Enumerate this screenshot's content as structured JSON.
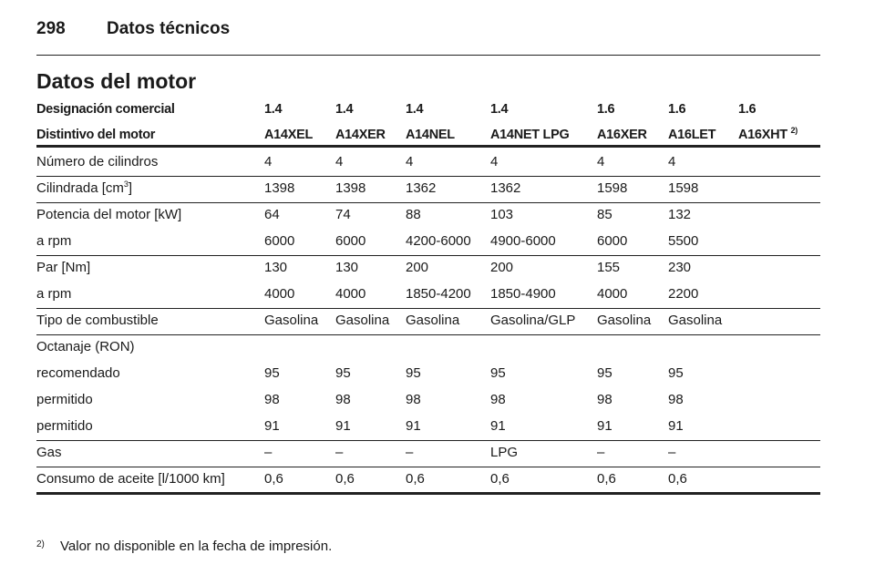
{
  "header": {
    "page": "298",
    "section": "Datos técnicos"
  },
  "title": "Datos del motor",
  "table": {
    "header_rows": [
      [
        "Designación comercial",
        "1.4",
        "1.4",
        "1.4",
        "1.4",
        "1.6",
        "1.6",
        "1.6"
      ],
      [
        "Distintivo del motor",
        "A14XEL",
        "A14XER",
        "A14NEL",
        "A14NET LPG",
        "A16XER",
        "A16LET",
        {
          "text": "A16XHT ",
          "sup": "2)"
        }
      ]
    ],
    "groups": [
      [
        [
          "Número de cilindros",
          "4",
          "4",
          "4",
          "4",
          "4",
          "4"
        ]
      ],
      [
        [
          {
            "text": "Cilindrada [cm",
            "sup": "3",
            "after": "]"
          },
          "1398",
          "1398",
          "1362",
          "1362",
          "1598",
          "1598"
        ]
      ],
      [
        [
          "Potencia del motor [kW]",
          "64",
          "74",
          "88",
          "103",
          "85",
          "132"
        ],
        [
          "a rpm",
          "6000",
          "6000",
          "4200-6000",
          "4900-6000",
          "6000",
          "5500"
        ]
      ],
      [
        [
          "Par [Nm]",
          "130",
          "130",
          "200",
          "200",
          "155",
          "230"
        ],
        [
          "a rpm",
          "4000",
          "4000",
          "1850-4200",
          "1850-4900",
          "4000",
          "2200"
        ]
      ],
      [
        [
          "Tipo de combustible",
          "Gasolina",
          "Gasolina",
          "Gasolina",
          "Gasolina/GLP",
          "Gasolina",
          "Gasolina"
        ]
      ],
      [
        [
          "Octanaje (RON)"
        ],
        [
          "recomendado",
          "95",
          "95",
          "95",
          "95",
          "95",
          "95"
        ],
        [
          "permitido",
          "98",
          "98",
          "98",
          "98",
          "98",
          "98"
        ],
        [
          "permitido",
          "91",
          "91",
          "91",
          "91",
          "91",
          "91"
        ]
      ],
      [
        [
          "Gas",
          "–",
          "–",
          "–",
          "LPG",
          "–",
          "–"
        ]
      ],
      [
        [
          "Consumo de aceite [l/1000 km]",
          "0,6",
          "0,6",
          "0,6",
          "0,6",
          "0,6",
          "0,6"
        ]
      ]
    ]
  },
  "footnote": {
    "marker": "2)",
    "text": "Valor no disponible en la fecha de impresión."
  }
}
